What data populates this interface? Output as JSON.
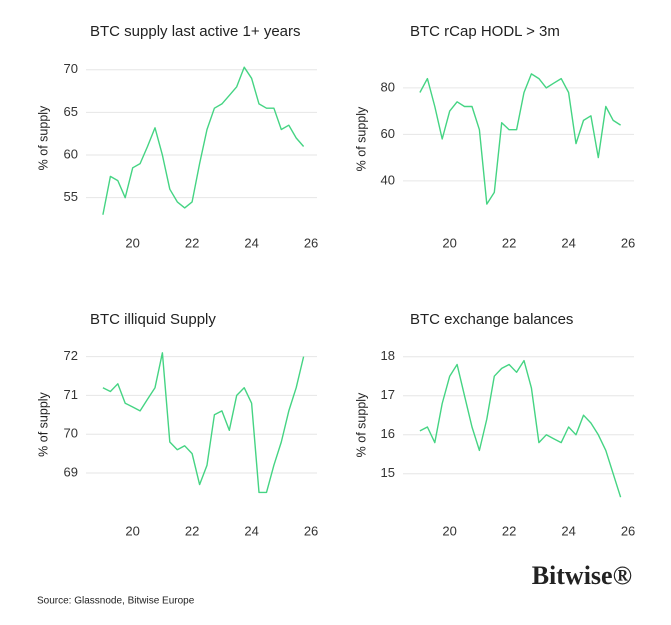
{
  "chart_data": [
    {
      "type": "line",
      "title": "BTC supply last active 1+ years",
      "y_label": "% of supply",
      "color": "#45d483",
      "x": [
        19,
        19.25,
        19.5,
        19.75,
        20,
        20.25,
        20.5,
        20.75,
        21,
        21.25,
        21.5,
        21.75,
        22,
        22.25,
        22.5,
        22.75,
        23,
        23.25,
        23.5,
        23.75,
        24,
        24.25,
        24.5,
        24.75,
        25,
        25.25,
        25.5,
        25.75
      ],
      "values": [
        53,
        57.5,
        57,
        55,
        58.5,
        59,
        61,
        63.2,
        60,
        56,
        54.5,
        53.8,
        54.5,
        59,
        63,
        65.5,
        66,
        67,
        68,
        70.3,
        69,
        66,
        65.5,
        65.5,
        63,
        63.5,
        62,
        61
      ],
      "xlim": [
        18.7,
        26.2
      ],
      "xticks": [
        20,
        22,
        24,
        26
      ],
      "ylim": [
        52.5,
        71.5
      ],
      "yticks": [
        55,
        60,
        65,
        70
      ],
      "grid": true
    },
    {
      "type": "line",
      "title": "BTC rCap HODL > 3m",
      "y_label": "% of supply",
      "color": "#45d483",
      "x": [
        19,
        19.25,
        19.5,
        19.75,
        20,
        20.25,
        20.5,
        20.75,
        21,
        21.25,
        21.5,
        21.75,
        22,
        22.25,
        22.5,
        22.75,
        23,
        23.25,
        23.5,
        23.75,
        24,
        24.25,
        24.5,
        24.75,
        25,
        25.25,
        25.5,
        25.75
      ],
      "values": [
        78,
        84,
        72,
        58,
        70,
        74,
        72,
        72,
        62,
        30,
        35,
        65,
        62,
        62,
        78,
        86,
        84,
        80,
        82,
        84,
        78,
        56,
        66,
        68,
        50,
        72,
        66,
        64
      ],
      "xlim": [
        18.7,
        26.2
      ],
      "xticks": [
        20,
        22,
        24,
        26
      ],
      "ylim": [
        24,
        92
      ],
      "yticks": [
        40,
        60,
        80
      ],
      "grid": true
    },
    {
      "type": "line",
      "title": "BTC illiquid Supply",
      "y_label": "% of supply",
      "color": "#45d483",
      "x": [
        19,
        19.25,
        19.5,
        19.75,
        20,
        20.25,
        20.5,
        20.75,
        21,
        21.25,
        21.5,
        21.75,
        22,
        22.25,
        22.5,
        22.75,
        23,
        23.25,
        23.5,
        23.75,
        24,
        24.25,
        24.5,
        24.75,
        25,
        25.25,
        25.5,
        25.75
      ],
      "values": [
        71.2,
        71.1,
        71.3,
        70.8,
        70.7,
        70.6,
        70.9,
        71.2,
        72.1,
        69.8,
        69.6,
        69.7,
        69.5,
        68.7,
        69.2,
        70.5,
        70.6,
        70.1,
        71.0,
        71.2,
        70.8,
        68.5,
        68.5,
        69.2,
        69.8,
        70.6,
        71.2,
        72.0
      ],
      "xlim": [
        18.7,
        26.2
      ],
      "xticks": [
        20,
        22,
        24,
        26
      ],
      "ylim": [
        68.2,
        72.3
      ],
      "yticks": [
        69,
        70,
        71,
        72
      ],
      "grid": true
    },
    {
      "type": "line",
      "title": "BTC exchange balances",
      "y_label": "% of supply",
      "color": "#45d483",
      "x": [
        19,
        19.25,
        19.5,
        19.75,
        20,
        20.25,
        20.5,
        20.75,
        21,
        21.25,
        21.5,
        21.75,
        22,
        22.25,
        22.5,
        22.75,
        23,
        23.25,
        23.5,
        23.75,
        24,
        24.25,
        24.5,
        24.75,
        25,
        25.25,
        25.5,
        25.75
      ],
      "values": [
        16.1,
        16.2,
        15.8,
        16.8,
        17.5,
        17.8,
        17.0,
        16.2,
        15.6,
        16.4,
        17.5,
        17.7,
        17.8,
        17.6,
        17.9,
        17.2,
        15.8,
        16.0,
        15.9,
        15.8,
        16.2,
        16.0,
        16.5,
        16.3,
        16.0,
        15.6,
        15.0,
        14.4
      ],
      "xlim": [
        18.7,
        26.2
      ],
      "xticks": [
        20,
        22,
        24,
        26
      ],
      "ylim": [
        14.2,
        18.3
      ],
      "yticks": [
        15,
        16,
        17,
        18
      ],
      "grid": true
    }
  ],
  "source": "Source: Glassnode, Bitwise Europe",
  "brand": "Bitwise®"
}
